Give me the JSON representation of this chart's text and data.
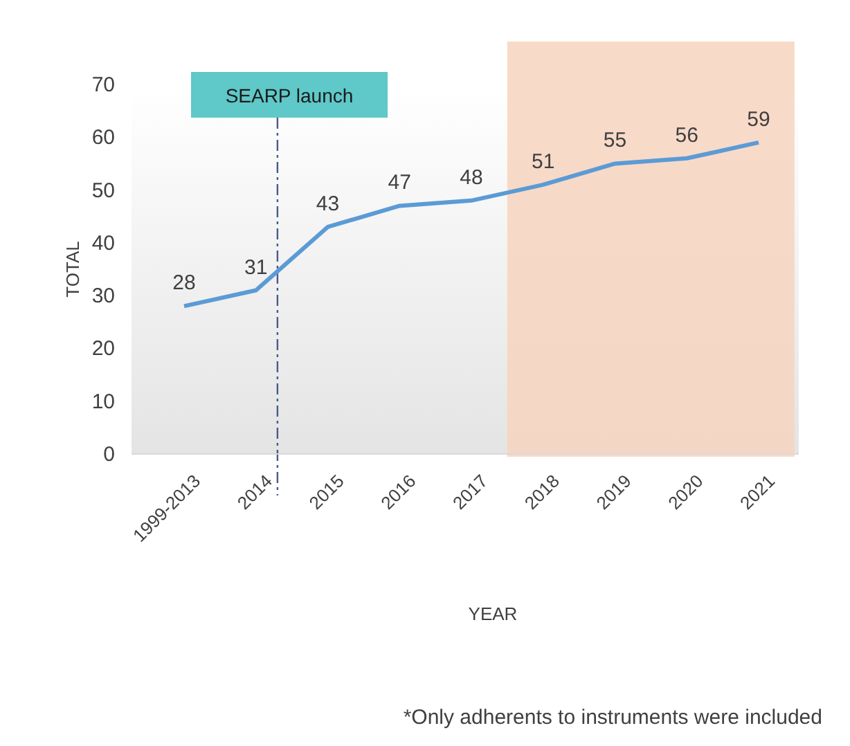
{
  "chart_data": {
    "type": "line",
    "xlabel": "YEAR",
    "ylabel": "TOTAL",
    "categories": [
      "1999-2013",
      "2014",
      "2015",
      "2016",
      "2017",
      "2018",
      "2019",
      "2020",
      "2021"
    ],
    "series": [
      {
        "color": "#5b9bd5",
        "values": [
          28,
          31,
          43,
          47,
          48,
          51,
          55,
          56,
          59
        ]
      }
    ],
    "ylim": [
      0,
      70
    ],
    "yticks": [
      0,
      10,
      20,
      30,
      40,
      50,
      60,
      70
    ],
    "data_labels": true,
    "marker": "none",
    "line_style": "solid",
    "ref_lines": [
      {
        "axis": "x",
        "value": "2014",
        "label": "SEARP launch",
        "color": "#4a5a8a",
        "line_style": "dashed"
      }
    ],
    "bands": [
      {
        "axis": "x",
        "from": "2018",
        "to": "2021",
        "color": "#f7d3bf"
      }
    ],
    "annotations": [
      "*Only adherents to instruments were included"
    ]
  }
}
